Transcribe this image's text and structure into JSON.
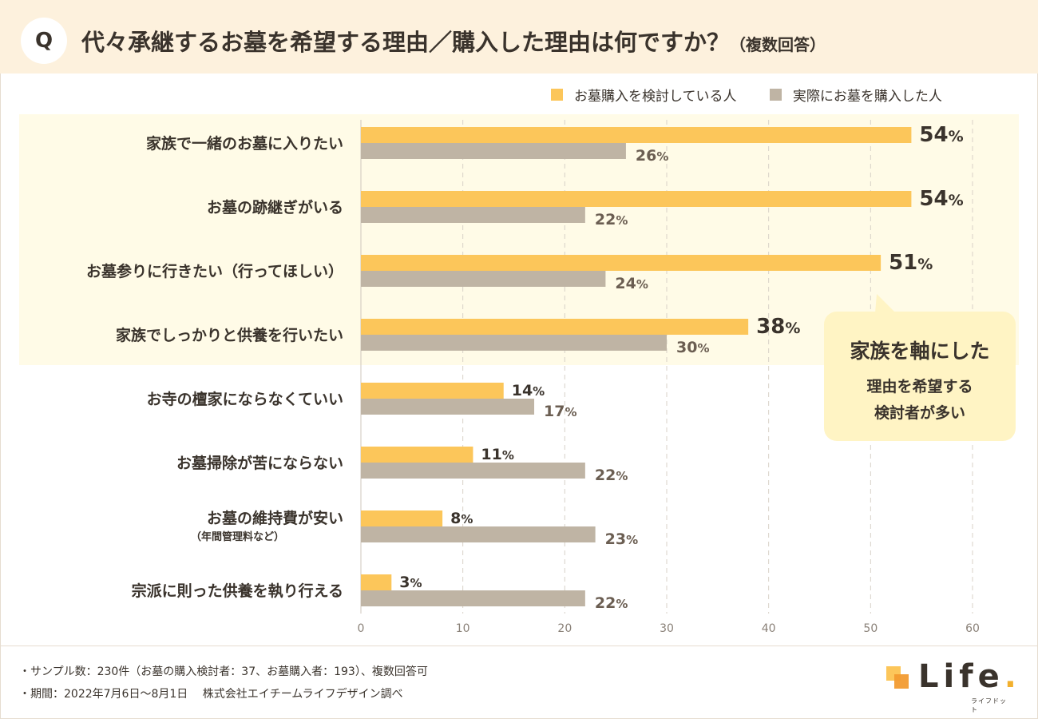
{
  "header": {
    "badge": "Q",
    "title": "代々承継するお墓を希望する理由／購入した理由は何ですか？",
    "subtitle": "（複数回答）"
  },
  "legend": {
    "a": "お墓購入を検討している人",
    "b": "実際にお墓を購入した人"
  },
  "colors": {
    "considering": "#fcc65a",
    "purchased": "#bfb4a4",
    "label_considering": "#3a332c",
    "label_purchased": "#6b5e52",
    "grid": "#d8d1c7",
    "header_bg": "#fdf1dd",
    "highlight_bg": "#fffbe7",
    "callout_bg": "#fff4c4"
  },
  "callout": {
    "line1": "家族を軸にした",
    "line2": "理由を希望する",
    "line3": "検討者が多い"
  },
  "chart_data": {
    "type": "bar",
    "orientation": "horizontal",
    "title": "代々承継するお墓を希望する理由／購入した理由は何ですか？（複数回答）",
    "xlabel": "",
    "ylabel": "",
    "xlim": [
      0,
      60
    ],
    "ticks": [
      0,
      10,
      20,
      30,
      40,
      50,
      60
    ],
    "grid": true,
    "unit": "%",
    "categories": [
      {
        "label": "家族で一緒のお墓に入りたい",
        "sub": ""
      },
      {
        "label": "お墓の跡継ぎがいる",
        "sub": ""
      },
      {
        "label": "お墓参りに行きたい（行ってほしい）",
        "sub": ""
      },
      {
        "label": "家族でしっかりと供養を行いたい",
        "sub": ""
      },
      {
        "label": "お寺の檀家にならなくていい",
        "sub": ""
      },
      {
        "label": "お墓掃除が苦にならない",
        "sub": ""
      },
      {
        "label": "お墓の維持費が安い",
        "sub": "（年間管理料など）"
      },
      {
        "label": "宗派に則った供養を執り行える",
        "sub": ""
      }
    ],
    "series": [
      {
        "name": "お墓購入を検討している人",
        "values": [
          54,
          54,
          51,
          38,
          14,
          11,
          8,
          3
        ]
      },
      {
        "name": "実際にお墓を購入した人",
        "values": [
          26,
          22,
          24,
          30,
          17,
          22,
          23,
          22
        ]
      }
    ]
  },
  "footer": {
    "note1": "・サンプル数：230件（お墓の購入検討者：37、お墓購入者：193）、複数回答可",
    "note2": "・期間：2022年7月6日～8月1日　 株式会社エイチームライフデザイン調べ"
  },
  "logo": {
    "word": "Life",
    "dot": ".",
    "kana": "ライフドット"
  }
}
